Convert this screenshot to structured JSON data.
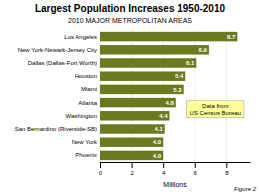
{
  "chart_data": {
    "type": "bar",
    "orientation": "horizontal",
    "title": "Largest Population Increases 1950-2010",
    "subtitle": "2010 MAJOR METROPOLITAN AREAS",
    "x_label": "Millions",
    "annotations": [
      "Data from\nUS Census Bureau",
      "Figure 2"
    ],
    "categories": [
      "Phoenix",
      "New York",
      "San Bernardino (Riverside-SB)",
      "Washington",
      "Atlanta",
      "Miami",
      "Houston",
      "Dallas (Dallas-Fort Worth)",
      "New York-Newark-Jersey City",
      "Los Angeles"
    ],
    "values": [
      4.0,
      4.0,
      4.1,
      4.4,
      4.8,
      5.3,
      5.4,
      6.1,
      6.9,
      8.7
    ],
    "value_labels": [
      "4.0",
      "4.0",
      "4.1",
      "4.4",
      "4.8",
      "5.3",
      "5.4",
      "6.1",
      "6.9",
      "8.7"
    ],
    "data_labels": true,
    "color": "#6b7a1e",
    "xlim": [
      0,
      9.5
    ],
    "xticks": [
      0,
      2,
      4,
      6,
      8
    ],
    "grid": true
  }
}
